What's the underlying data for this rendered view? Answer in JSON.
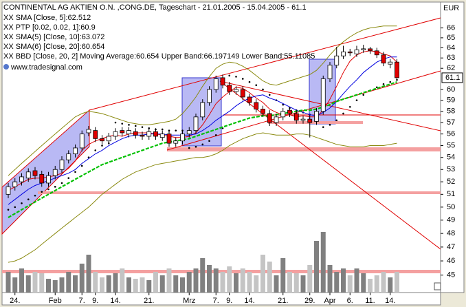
{
  "chart_data": {
    "type": "candlestick",
    "title": "CONTINENTAL AG AKTIEN O.N. ,CONG.DE, Tageschart - 21.01.2005 - 15.04.2005 - 61.1",
    "watermark": "www.tradesignal.com",
    "y_label": "EUR",
    "log_scale": true,
    "ylim": [
      43.8,
      68.7
    ],
    "yticks": [
      45,
      46,
      47,
      48,
      49,
      50,
      51,
      52,
      53,
      54,
      55,
      56,
      57,
      58,
      59,
      60,
      62,
      63,
      64,
      65,
      66
    ],
    "categories": [
      null,
      "24.",
      null,
      null,
      null,
      null,
      null,
      "Feb",
      null,
      null,
      null,
      "7.",
      null,
      "9.",
      null,
      null,
      "14.",
      null,
      null,
      null,
      null,
      "21.",
      null,
      null,
      null,
      null,
      null,
      "Mrz",
      null,
      null,
      null,
      "7.",
      null,
      "9.",
      null,
      null,
      "14.",
      null,
      null,
      null,
      null,
      "21.",
      null,
      null,
      null,
      "29.",
      null,
      null,
      "Apr",
      null,
      null,
      "6.",
      null,
      null,
      "11.",
      null,
      null,
      "14.",
      null
    ],
    "open": [
      51.0,
      51.6,
      52.0,
      52.3,
      52.9,
      52.6,
      51.9,
      52.5,
      53.0,
      53.8,
      54.3,
      54.8,
      56.1,
      56.3,
      55.6,
      55.4,
      55.8,
      56.3,
      56.0,
      56.2,
      55.9,
      55.8,
      56.2,
      55.7,
      56.0,
      55.2,
      55.4,
      56.0,
      56.3,
      57.5,
      58.8,
      60.0,
      61.1,
      60.4,
      59.8,
      60.0,
      59.3,
      58.8,
      58.2,
      57.8,
      57.0,
      57.5,
      58.1,
      57.8,
      57.2,
      57.3,
      57.1,
      58.0,
      61.0,
      62.3,
      63.2,
      63.6,
      63.4,
      63.8,
      63.9,
      63.7,
      63.3,
      62.4,
      62.6
    ],
    "high": [
      51.9,
      52.3,
      52.7,
      53.1,
      53.2,
      52.9,
      52.8,
      53.3,
      54.1,
      54.6,
      55.1,
      56.3,
      56.7,
      56.6,
      55.9,
      56.1,
      56.5,
      56.6,
      56.6,
      56.5,
      56.2,
      56.5,
      56.5,
      56.3,
      56.3,
      55.7,
      56.3,
      56.6,
      57.8,
      59.1,
      60.3,
      61.3,
      61.4,
      60.7,
      60.3,
      60.3,
      59.6,
      59.1,
      58.5,
      58.1,
      57.8,
      58.3,
      58.4,
      58.1,
      57.6,
      57.6,
      58.3,
      61.3,
      62.6,
      64.1,
      64.2,
      63.9,
      64.2,
      64.3,
      64.1,
      64.0,
      63.6,
      62.9,
      62.9
    ],
    "low": [
      50.7,
      51.3,
      51.7,
      52.0,
      52.2,
      51.6,
      51.6,
      52.2,
      52.7,
      53.5,
      54.0,
      54.5,
      55.8,
      55.3,
      55.1,
      55.1,
      55.5,
      55.8,
      55.7,
      55.6,
      55.5,
      55.5,
      55.5,
      55.4,
      54.9,
      54.9,
      55.1,
      55.7,
      56.0,
      57.2,
      58.5,
      59.7,
      60.1,
      59.5,
      59.5,
      59.0,
      58.5,
      57.9,
      57.5,
      56.7,
      56.7,
      57.2,
      57.5,
      56.9,
      56.9,
      55.7,
      56.8,
      57.7,
      60.7,
      62.0,
      62.9,
      63.2,
      63.1,
      63.5,
      63.4,
      63.0,
      62.2,
      62.0,
      60.8
    ],
    "close": [
      51.6,
      52.0,
      52.4,
      52.8,
      52.5,
      51.9,
      52.5,
      53.0,
      53.8,
      54.3,
      54.8,
      56.0,
      56.4,
      55.6,
      55.4,
      55.8,
      56.2,
      56.1,
      56.3,
      55.9,
      55.8,
      56.2,
      55.8,
      56.0,
      55.2,
      55.4,
      56.0,
      56.3,
      57.5,
      58.8,
      60.0,
      61.0,
      60.4,
      59.8,
      60.0,
      59.3,
      58.8,
      58.2,
      57.8,
      57.0,
      57.5,
      58.0,
      57.8,
      57.2,
      57.3,
      57.0,
      58.0,
      61.0,
      62.3,
      63.2,
      63.6,
      63.5,
      63.8,
      63.9,
      63.7,
      63.3,
      62.5,
      62.6,
      61.1
    ],
    "up_color": "#ffffff",
    "down_color": "#e00000",
    "volume": [
      30,
      22,
      35,
      25,
      30,
      28,
      20,
      18,
      22,
      30,
      25,
      42,
      55,
      30,
      22,
      25,
      28,
      35,
      22,
      20,
      22,
      18,
      30,
      25,
      35,
      25,
      22,
      30,
      35,
      50,
      40,
      35,
      30,
      38,
      28,
      35,
      30,
      25,
      55,
      45,
      25,
      50,
      30,
      28,
      25,
      40,
      75,
      88,
      40,
      30,
      35,
      25,
      35,
      28,
      20,
      25,
      30,
      22,
      30
    ],
    "vlim": [
      0,
      100
    ],
    "volume_up_color": "#808080",
    "volume_down_color": "#c4c4c4",
    "series": [
      {
        "name": "XX SMA [Close, 5]:62.512",
        "color": "#e00000",
        "style": "line",
        "values": [
          51.3,
          51.6,
          51.9,
          52.2,
          52.3,
          52.3,
          52.4,
          52.5,
          52.7,
          53.1,
          53.7,
          54.6,
          55.1,
          55.4,
          55.6,
          55.8,
          55.9,
          55.8,
          56.0,
          56.1,
          56.1,
          56.1,
          56.0,
          55.9,
          55.8,
          55.7,
          55.7,
          55.8,
          56.1,
          56.8,
          57.7,
          58.7,
          59.3,
          59.8,
          60.2,
          60.1,
          59.7,
          59.2,
          58.8,
          58.2,
          57.9,
          57.7,
          57.7,
          57.5,
          57.6,
          57.5,
          57.5,
          58.1,
          59.1,
          60.3,
          61.6,
          62.7,
          63.3,
          63.6,
          63.7,
          63.6,
          63.4,
          63.2,
          62.6
        ]
      },
      {
        "name": "XX PTP [0.02, 0.02, 1]:60.9",
        "color": "#000000",
        "style": "dots",
        "values": [
          49.8,
          50.0,
          50.3,
          50.6,
          50.9,
          51.2,
          51.4,
          51.6,
          51.9,
          52.3,
          52.8,
          53.3,
          54.0,
          54.6,
          55.0,
          55.2,
          57.0,
          56.9,
          56.8,
          56.7,
          56.6,
          56.5,
          56.4,
          56.4,
          56.3,
          56.3,
          56.3,
          54.8,
          54.9,
          55.1,
          55.4,
          55.9,
          56.5,
          61.3,
          61.2,
          61.0,
          60.7,
          60.4,
          60.0,
          59.5,
          59.0,
          58.6,
          58.3,
          58.1,
          57.9,
          57.7,
          57.6,
          56.6,
          56.8,
          57.2,
          57.8,
          58.4,
          59.0,
          59.5,
          59.9,
          60.2,
          60.5,
          60.7,
          60.9
        ]
      },
      {
        "name": "XX SMA(5) [Close, 10]:63.072",
        "color": "#0000e0",
        "style": "line",
        "values": [
          50.2,
          50.6,
          51.0,
          51.4,
          51.7,
          51.9,
          52.1,
          52.3,
          52.5,
          52.7,
          53.0,
          53.5,
          53.9,
          54.3,
          54.6,
          55.0,
          55.3,
          55.6,
          55.8,
          55.9,
          55.9,
          56.0,
          56.0,
          56.0,
          55.9,
          55.9,
          55.9,
          55.9,
          56.0,
          56.3,
          56.7,
          57.2,
          57.6,
          58.0,
          58.5,
          58.9,
          59.2,
          59.4,
          59.5,
          59.2,
          59.0,
          58.7,
          58.4,
          58.1,
          57.9,
          57.7,
          57.6,
          57.9,
          58.3,
          58.9,
          59.6,
          60.3,
          60.9,
          61.6,
          62.1,
          62.6,
          62.9,
          63.1,
          63.1
        ]
      },
      {
        "name": "XX SMA(6) [Close, 20]:60.654",
        "color": "#00c000",
        "style": "dashed",
        "values": [
          49.2,
          49.5,
          49.8,
          50.1,
          50.4,
          50.7,
          51.0,
          51.3,
          51.6,
          51.9,
          52.2,
          52.5,
          52.8,
          53.1,
          53.4,
          53.6,
          53.8,
          54.0,
          54.2,
          54.4,
          54.6,
          54.8,
          55.0,
          55.2,
          55.3,
          55.4,
          55.5,
          55.6,
          55.8,
          56.0,
          56.2,
          56.4,
          56.6,
          56.8,
          57.0,
          57.2,
          57.4,
          57.5,
          57.6,
          57.6,
          57.7,
          57.8,
          57.9,
          58.0,
          58.1,
          58.1,
          58.2,
          58.4,
          58.6,
          58.9,
          59.1,
          59.3,
          59.5,
          59.7,
          59.9,
          60.1,
          60.3,
          60.5,
          60.7
        ]
      },
      {
        "name": "XX BBD [Close, 20, 2] Moving Average:60.654 Upper Band:66.197149 Lower Band:55.11085",
        "color": "#8a8a10",
        "style": "band",
        "upper": [
          52.5,
          53.0,
          53.5,
          54.0,
          54.5,
          55.0,
          55.5,
          56.0,
          56.5,
          57.0,
          57.5,
          57.8,
          58.0,
          57.9,
          57.8,
          57.6,
          57.4,
          57.2,
          57.0,
          56.9,
          56.8,
          56.8,
          56.9,
          57.0,
          57.1,
          57.3,
          57.8,
          58.5,
          59.3,
          60.3,
          61.2,
          62.0,
          62.4,
          62.6,
          62.5,
          62.2,
          61.8,
          61.3,
          60.8,
          60.5,
          60.4,
          60.6,
          60.8,
          61.0,
          61.2,
          61.4,
          61.8,
          62.5,
          63.3,
          64.0,
          64.6,
          65.1,
          65.5,
          65.8,
          66.0,
          66.1,
          66.2,
          66.2,
          66.2
        ],
        "lower": [
          45.9,
          46.0,
          46.2,
          46.5,
          46.8,
          47.2,
          47.6,
          48.0,
          48.4,
          48.8,
          49.2,
          49.6,
          50.0,
          50.5,
          51.0,
          51.4,
          51.8,
          52.2,
          52.5,
          52.8,
          53.0,
          53.2,
          53.4,
          53.5,
          53.6,
          53.7,
          53.8,
          53.9,
          54.0,
          54.0,
          54.1,
          54.3,
          54.6,
          55.0,
          55.3,
          55.6,
          55.8,
          56.0,
          56.1,
          56.0,
          55.9,
          55.9,
          55.9,
          56.0,
          56.0,
          55.9,
          55.7,
          55.5,
          55.3,
          55.1,
          55.0,
          54.9,
          54.9,
          54.9,
          55.0,
          55.0,
          55.0,
          55.1,
          55.2
        ]
      }
    ]
  }
}
